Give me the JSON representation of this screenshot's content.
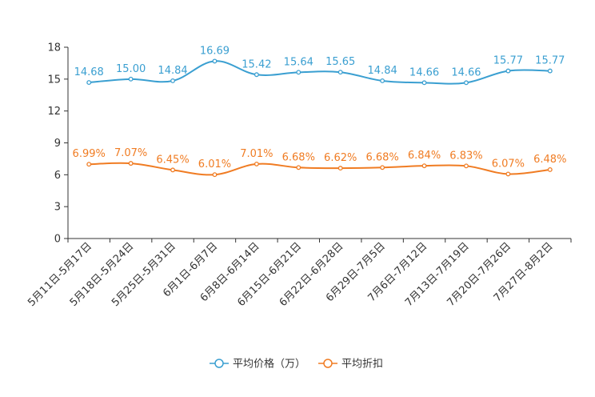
{
  "chart_data": {
    "type": "line",
    "title": "",
    "xlabel": "",
    "ylabel": "",
    "ylim": [
      0,
      18
    ],
    "yticks": [
      0,
      3,
      6,
      9,
      12,
      15,
      18
    ],
    "grid": false,
    "legend_position": "bottom-center",
    "categories": [
      "5月11日-5月17日",
      "5月18日-5月24日",
      "5月25日-5月31日",
      "6月1日-6月7日",
      "6月8日-6月14日",
      "6月15日-6月21日",
      "6月22日-6月28日",
      "6月29日-7月5日",
      "7月6日-7月12日",
      "7月13日-7月19日",
      "7月20日-7月26日",
      "7月27日-8月2日"
    ],
    "series": [
      {
        "name": "平均价格（万）",
        "color": "#3a9fd1",
        "values": [
          14.68,
          15.0,
          14.84,
          16.69,
          15.42,
          15.64,
          15.65,
          14.84,
          14.66,
          14.66,
          15.77,
          15.77
        ],
        "labels": [
          "14.68",
          "15.00",
          "14.84",
          "16.69",
          "15.42",
          "15.64",
          "15.65",
          "14.84",
          "14.66",
          "14.66",
          "15.77",
          "15.77"
        ]
      },
      {
        "name": "平均折扣",
        "color": "#f07c23",
        "values": [
          6.99,
          7.07,
          6.45,
          6.01,
          7.01,
          6.68,
          6.62,
          6.68,
          6.84,
          6.83,
          6.07,
          6.48
        ],
        "labels": [
          "6.99%",
          "7.07%",
          "6.45%",
          "6.01%",
          "7.01%",
          "6.68%",
          "6.62%",
          "6.68%",
          "6.84%",
          "6.83%",
          "6.07%",
          "6.48%"
        ]
      }
    ]
  }
}
